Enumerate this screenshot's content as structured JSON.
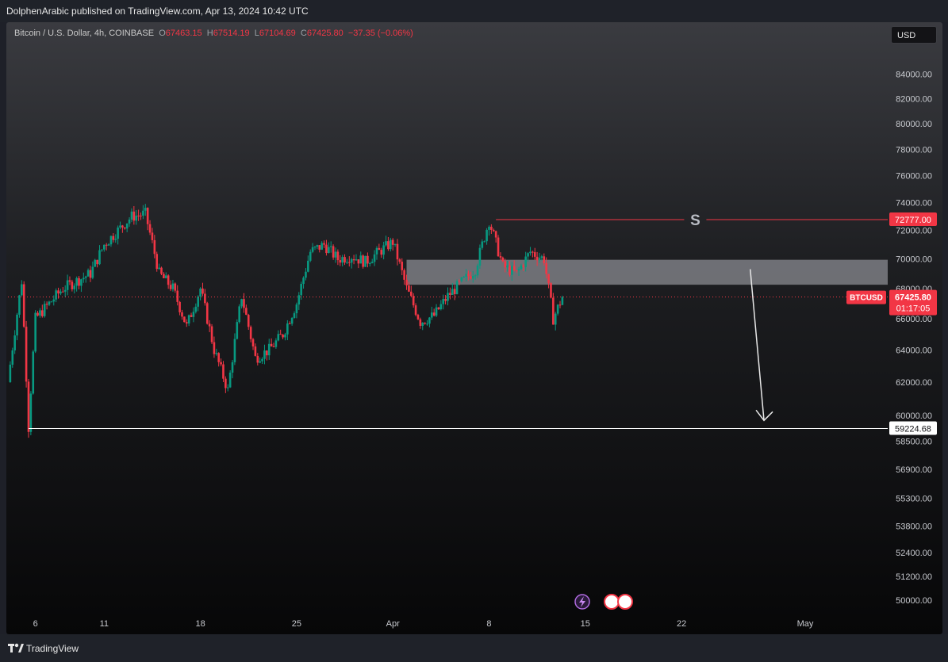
{
  "header": {
    "published_by": "DolphenArabic published on TradingView.com, Apr 13, 2024 10:42 UTC"
  },
  "legend": {
    "symbol": "Bitcoin / U.S. Dollar, 4h, COINBASE",
    "o_label": "O",
    "o_value": "67463.15",
    "h_label": "H",
    "h_value": "67514.19",
    "l_label": "L",
    "l_value": "67104.69",
    "c_label": "C",
    "c_value": "67425.80",
    "change": "−37.35 (−0.06%)"
  },
  "currency_button": "USD",
  "footer": {
    "brand": "TradingView"
  },
  "colors": {
    "up": "#089981",
    "down": "#f23645",
    "zone": "#7d7e84",
    "level_line": "#ffffff"
  },
  "chart_data": {
    "type": "candlestick",
    "symbol": "BTCUSD",
    "timeframe": "4h",
    "exchange": "COINBASE",
    "y_axis": {
      "scale": "log",
      "range": [
        49500,
        86500
      ],
      "ticks": [
        50000,
        51200,
        52400,
        53800,
        55300,
        56900,
        58500,
        60000,
        62000,
        64000,
        66000,
        68000,
        70000,
        72000,
        74000,
        76000,
        78000,
        80000,
        82000,
        84000
      ],
      "tick_labels": [
        "50000.00",
        "51200.00",
        "52400.00",
        "53800.00",
        "55300.00",
        "56900.00",
        "58500.00",
        "60000.00",
        "62000.00",
        "64000.00",
        "66000.00",
        "68000.00",
        "70000.00",
        "72000.00",
        "74000.00",
        "76000.00",
        "78000.00",
        "80000.00",
        "82000.00",
        "84000.00"
      ]
    },
    "x_axis": {
      "range": [
        "2024-03-04",
        "2024-05-07"
      ],
      "ticks": [
        {
          "date": "2024-03-06",
          "label": "6"
        },
        {
          "date": "2024-03-11",
          "label": "11"
        },
        {
          "date": "2024-03-18",
          "label": "18"
        },
        {
          "date": "2024-03-25",
          "label": "25"
        },
        {
          "date": "2024-04-01",
          "label": "Apr"
        },
        {
          "date": "2024-04-08",
          "label": "8"
        },
        {
          "date": "2024-04-15",
          "label": "15"
        },
        {
          "date": "2024-04-22",
          "label": "22"
        },
        {
          "date": "2024-05-01",
          "label": "May"
        }
      ]
    },
    "price_path": [
      [
        "2024-03-04",
        62000
      ],
      [
        "2024-03-05",
        68500
      ],
      [
        "2024-03-05T12:00",
        59300
      ],
      [
        "2024-03-06",
        66000
      ],
      [
        "2024-03-07",
        67000
      ],
      [
        "2024-03-08",
        68000
      ],
      [
        "2024-03-09",
        68500
      ],
      [
        "2024-03-10",
        69000
      ],
      [
        "2024-03-11",
        71000
      ],
      [
        "2024-03-12",
        72000
      ],
      [
        "2024-03-13",
        73000
      ],
      [
        "2024-03-14",
        73200
      ],
      [
        "2024-03-15",
        69000
      ],
      [
        "2024-03-16",
        68000
      ],
      [
        "2024-03-17",
        65500
      ],
      [
        "2024-03-18",
        68000
      ],
      [
        "2024-03-19",
        64000
      ],
      [
        "2024-03-20",
        61500
      ],
      [
        "2024-03-21",
        67500
      ],
      [
        "2024-03-22",
        63500
      ],
      [
        "2024-03-23",
        64000
      ],
      [
        "2024-03-24",
        65000
      ],
      [
        "2024-03-25",
        67000
      ],
      [
        "2024-03-26",
        70500
      ],
      [
        "2024-03-27",
        71000
      ],
      [
        "2024-03-28",
        70000
      ],
      [
        "2024-03-29",
        70200
      ],
      [
        "2024-03-30",
        69800
      ],
      [
        "2024-03-31",
        70500
      ],
      [
        "2024-04-01",
        71200
      ],
      [
        "2024-04-02",
        68000
      ],
      [
        "2024-04-03",
        65800
      ],
      [
        "2024-04-04",
        66200
      ],
      [
        "2024-04-05",
        67500
      ],
      [
        "2024-04-06",
        68400
      ],
      [
        "2024-04-07",
        69300
      ],
      [
        "2024-04-08",
        72700
      ],
      [
        "2024-04-09",
        69500
      ],
      [
        "2024-04-10",
        69000
      ],
      [
        "2024-04-11",
        70500
      ],
      [
        "2024-04-12",
        70000
      ],
      [
        "2024-04-12T16:00",
        66000
      ],
      [
        "2024-04-13T08:00",
        67425.8
      ]
    ],
    "last_candle": {
      "open": 67463.15,
      "high": 67514.19,
      "low": 67104.69,
      "close": 67425.8
    },
    "annotations": {
      "supply_zone": {
        "from": "2024-04-02",
        "to": "2024-05-07",
        "low": 68250,
        "high": 69950
      },
      "s_level": {
        "value": 72777,
        "from": "2024-04-08T12:00",
        "label": "S",
        "price_label": "72777.00"
      },
      "support_line": {
        "value": 59224.68,
        "from": "2024-03-05T12:00",
        "price_label": "59224.68"
      },
      "arrow": {
        "from": [
          "2024-04-27",
          69300
        ],
        "to": [
          "2024-04-28",
          59700
        ]
      },
      "current_price": {
        "value": 67425.8,
        "ticker": "BTCUSD",
        "price_label": "67425.80",
        "countdown": "01:17:05"
      }
    }
  }
}
